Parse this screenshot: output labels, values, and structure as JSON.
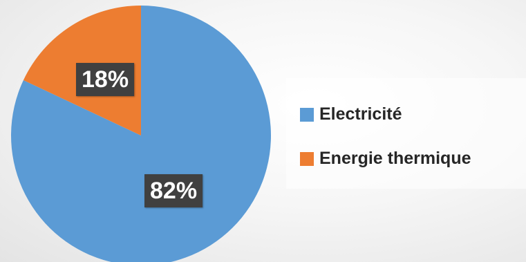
{
  "chart_data": {
    "type": "pie",
    "categories": [
      "Electricité",
      "Energie thermique"
    ],
    "values": [
      82,
      18
    ],
    "data_labels": [
      "82%",
      "18%"
    ],
    "colors": [
      "#5b9bd5",
      "#ed7d31"
    ],
    "start_angle_deg": 0,
    "direction": "clockwise",
    "legend_position": "right"
  },
  "legend": {
    "items": [
      {
        "label": "Electricité",
        "color": "#5b9bd5"
      },
      {
        "label": "Energie thermique",
        "color": "#ed7d31"
      }
    ]
  }
}
